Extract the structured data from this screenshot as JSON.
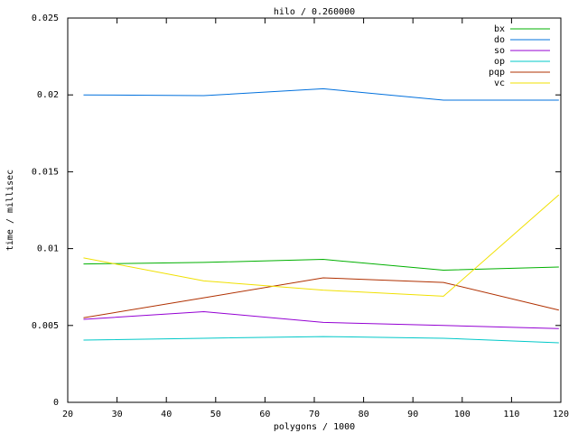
{
  "chart_data": {
    "type": "line",
    "title": "hilo / 0.260000",
    "x_label": "polygons / 1000",
    "y_label": "time / millisec",
    "x": [
      23.2,
      47.6,
      71.8,
      96.2,
      119.6
    ],
    "series": [
      {
        "name": "bx",
        "color": "#00b000",
        "values": [
          0.009,
          0.0091,
          0.0093,
          0.0086,
          0.0088
        ]
      },
      {
        "name": "do",
        "color": "#0070dd",
        "values": [
          0.02,
          0.01995,
          0.0204,
          0.01966,
          0.01966
        ]
      },
      {
        "name": "so",
        "color": "#9400d3",
        "values": [
          0.0054,
          0.0059,
          0.0052,
          0.005,
          0.0048
        ]
      },
      {
        "name": "op",
        "color": "#00c8c8",
        "values": [
          0.00405,
          0.00417,
          0.00428,
          0.00417,
          0.00387
        ]
      },
      {
        "name": "pqp",
        "color": "#b03000",
        "values": [
          0.0055,
          0.0068,
          0.0081,
          0.0078,
          0.006
        ]
      },
      {
        "name": "vc",
        "color": "#f0e000",
        "values": [
          0.0094,
          0.0079,
          0.0073,
          0.0069,
          0.0135
        ]
      }
    ],
    "xlim": [
      20,
      120
    ],
    "xticks": [
      20,
      30,
      40,
      50,
      60,
      70,
      80,
      90,
      100,
      110,
      120
    ],
    "ylim": [
      0,
      0.025
    ],
    "yticks": [
      0,
      0.005,
      0.01,
      0.015,
      0.02,
      0.025
    ],
    "legend": "top-right"
  }
}
